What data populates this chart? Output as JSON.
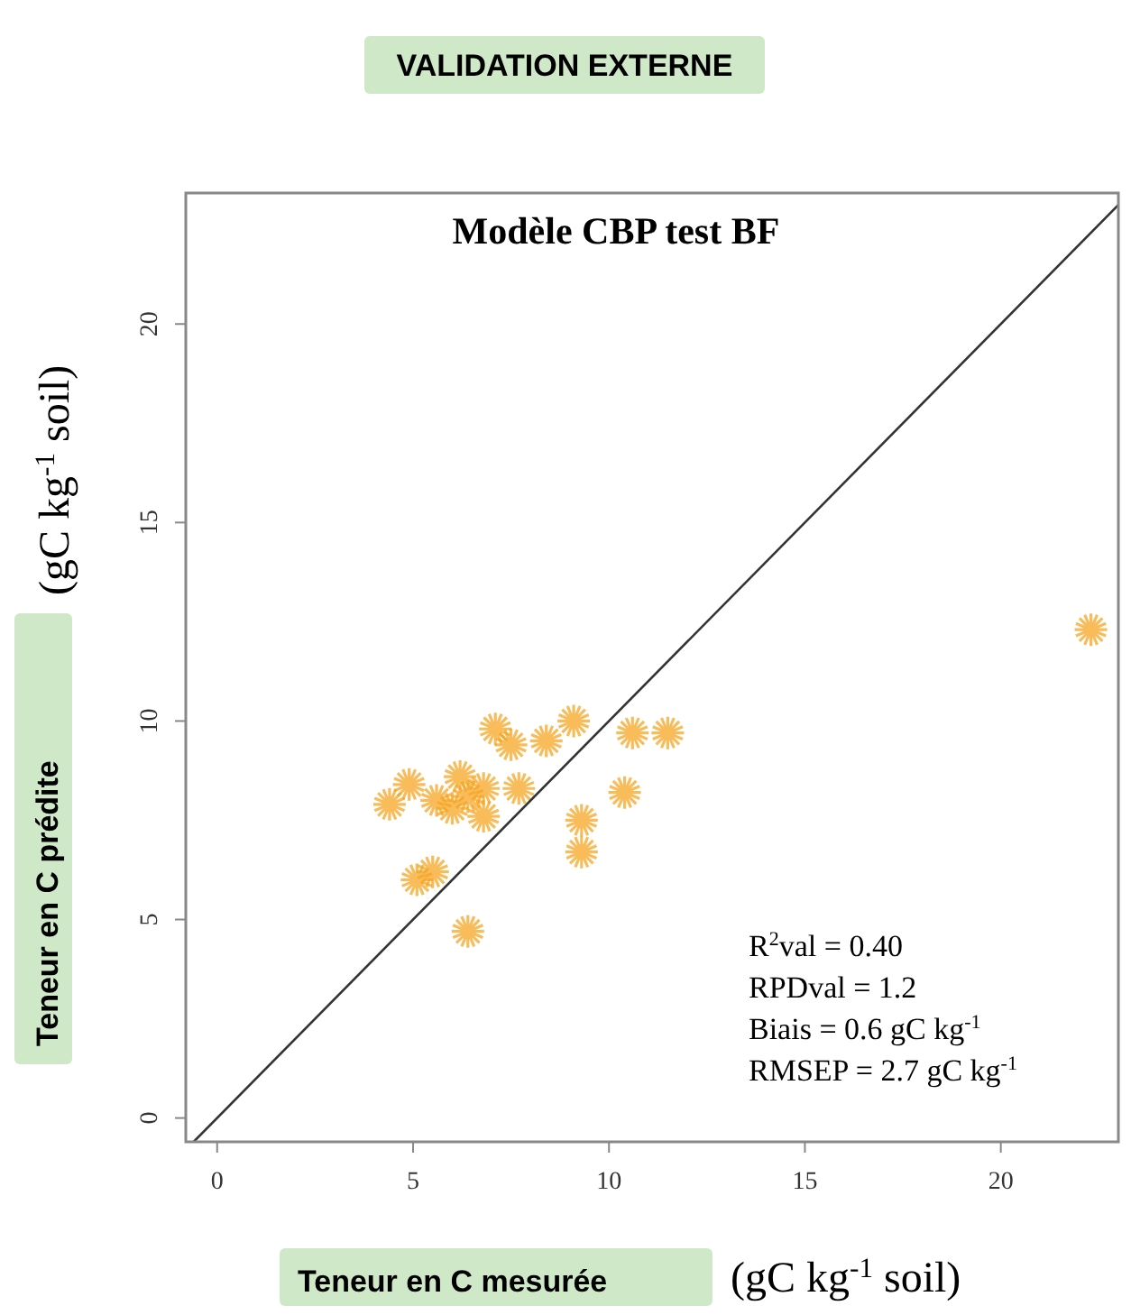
{
  "chart_data": {
    "type": "scatter",
    "title": "VALIDATION EXTERNE",
    "subtitle": "Modèle CBP test BF",
    "xlabel": "Teneur en C mesurée (gC kg$^{-1}$ soil)",
    "ylabel": "Teneur en C prédite (gC kg$^{-1}$ soil)",
    "xlim": [
      -0.8,
      23
    ],
    "ylim": [
      -0.6,
      23.3
    ],
    "xticks": [
      0,
      5,
      10,
      15,
      20
    ],
    "yticks": [
      0,
      5,
      10,
      15,
      20
    ],
    "grid": false,
    "series": [
      {
        "marker": "cross",
        "color": "#f5a623",
        "x": [
          4.9,
          4.4,
          6.2,
          6.4,
          6.8,
          7.5,
          7.1,
          8.4,
          9.1,
          10.6,
          11.5,
          10.4,
          9.3,
          9.3,
          5.1,
          5.5,
          6.4,
          5.6,
          7.7,
          6.8,
          6.0,
          22.3
        ],
        "values": [
          8.4,
          7.9,
          8.6,
          8.1,
          8.3,
          9.4,
          9.8,
          9.5,
          10.0,
          9.7,
          9.7,
          8.2,
          7.5,
          6.7,
          6.0,
          6.2,
          4.7,
          8.0,
          8.3,
          7.6,
          7.8,
          12.3
        ]
      },
      {
        "type": "line",
        "marker": "none",
        "color": "#333333",
        "x": [
          -0.6,
          23
        ],
        "values": [
          -0.6,
          23
        ]
      }
    ],
    "annotations": [
      "R$^{2}$val = 0.40",
      "RPDval = 1.2",
      "Biais = 0.6 gC kg$^{-1}$",
      "RMSEP = 2.7 gC kg$^{-1}$"
    ]
  }
}
